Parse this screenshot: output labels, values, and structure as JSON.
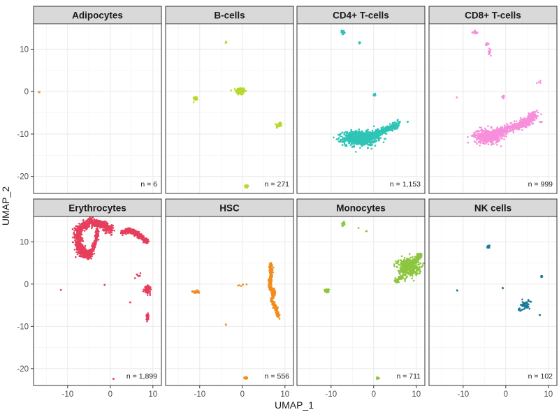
{
  "chart_data": {
    "type": "scatter",
    "layout": "facet-grid",
    "xlabel": "UMAP_1",
    "ylabel": "UMAP_2",
    "xlim": [
      -18,
      12
    ],
    "ylim": [
      -24,
      16
    ],
    "x_ticks": [
      -10,
      0,
      10
    ],
    "y_ticks": [
      -20,
      -10,
      0,
      10
    ],
    "grid": true,
    "panels": [
      {
        "name": "Adipocytes",
        "color": "#F8A23A",
        "count_label": "n = 6",
        "clusters": [
          {
            "shape": "blob",
            "cx": -16.8,
            "cy": -0.1,
            "rx": 0.15,
            "ry": 0.12,
            "n": 6
          }
        ]
      },
      {
        "name": "B-cells",
        "color": "#B5DA2C",
        "count_label": "n = 271",
        "clusters": [
          {
            "shape": "blob",
            "cx": -0.4,
            "cy": 0.1,
            "rx": 1.0,
            "ry": 0.8,
            "n": 150
          },
          {
            "shape": "blob",
            "cx": -11.0,
            "cy": -1.6,
            "rx": 0.5,
            "ry": 0.4,
            "n": 30
          },
          {
            "shape": "blob",
            "cx": 8.6,
            "cy": -7.9,
            "rx": 0.6,
            "ry": 0.5,
            "n": 50
          },
          {
            "shape": "blob",
            "cx": 1.0,
            "cy": -22.3,
            "rx": 0.3,
            "ry": 0.3,
            "n": 20
          },
          {
            "shape": "blob",
            "cx": -3.9,
            "cy": 11.6,
            "rx": 0.15,
            "ry": 0.15,
            "n": 5
          }
        ]
      },
      {
        "name": "CD4+ T-cells",
        "color": "#2EC4B6",
        "count_label": "n = 1,153",
        "clusters": [
          {
            "shape": "blob",
            "cx": -3.2,
            "cy": -11.0,
            "rx": 3.6,
            "ry": 1.5,
            "n": 750
          },
          {
            "shape": "strip",
            "points": [
              [
                -1,
                -10.5
              ],
              [
                1.5,
                -9.5
              ],
              [
                4,
                -8.5
              ],
              [
                5.5,
                -7.8
              ]
            ],
            "spread": 0.9,
            "n": 300
          },
          {
            "shape": "blob",
            "cx": -7.2,
            "cy": 14.0,
            "rx": 0.5,
            "ry": 0.4,
            "n": 25
          },
          {
            "shape": "blob",
            "cx": -3.4,
            "cy": 11.5,
            "rx": 0.25,
            "ry": 0.25,
            "n": 10
          },
          {
            "shape": "blob",
            "cx": 0.2,
            "cy": -0.8,
            "rx": 0.25,
            "ry": 0.35,
            "n": 12
          },
          {
            "shape": "blob",
            "cx": 8.0,
            "cy": -7.1,
            "rx": 0.1,
            "ry": 0.1,
            "n": 2
          },
          {
            "shape": "blob",
            "cx": 6.0,
            "cy": -7.2,
            "rx": 0.5,
            "ry": 0.7,
            "n": 8
          }
        ]
      },
      {
        "name": "CD8+ T-cells",
        "color": "#F78FDB",
        "count_label": "n = 999",
        "clusters": [
          {
            "shape": "blob",
            "cx": -4.3,
            "cy": -10.5,
            "rx": 2.8,
            "ry": 1.5,
            "n": 420
          },
          {
            "shape": "strip",
            "points": [
              [
                -2.5,
                -10
              ],
              [
                0,
                -9
              ],
              [
                3,
                -8
              ],
              [
                5.5,
                -6.8
              ],
              [
                7.0,
                -5.0
              ]
            ],
            "spread": 1.3,
            "n": 450
          },
          {
            "shape": "blob",
            "cx": -7.2,
            "cy": 14.0,
            "rx": 0.8,
            "ry": 0.3,
            "n": 15
          },
          {
            "shape": "blob",
            "cx": -4.3,
            "cy": 11.3,
            "rx": 0.3,
            "ry": 0.3,
            "n": 12
          },
          {
            "shape": "blob",
            "cx": -3.9,
            "cy": 9.5,
            "rx": 0.3,
            "ry": 0.6,
            "n": 12
          },
          {
            "shape": "blob",
            "cx": -0.6,
            "cy": -1.2,
            "rx": 0.25,
            "ry": 0.25,
            "n": 8
          },
          {
            "shape": "blob",
            "cx": 8.0,
            "cy": 2.2,
            "rx": 0.6,
            "ry": 0.3,
            "n": 4
          },
          {
            "shape": "blob",
            "cx": 8.3,
            "cy": -7.2,
            "rx": 0.4,
            "ry": 0.3,
            "n": 6
          },
          {
            "shape": "blob",
            "cx": -11.5,
            "cy": -1.5,
            "rx": 0.1,
            "ry": 0.1,
            "n": 2
          }
        ]
      },
      {
        "name": "Erythrocytes",
        "color": "#E63E5C",
        "count_label": "n = 1,899",
        "clusters": [
          {
            "shape": "strip",
            "points": [
              [
                0.2,
                12.8
              ],
              [
                -2.0,
                14.3
              ],
              [
                -5.0,
                14.6
              ],
              [
                -7.3,
                13.0
              ],
              [
                -7.6,
                10.0
              ],
              [
                -6.5,
                7.3
              ],
              [
                -4.8,
                6.8
              ]
            ],
            "spread": 1.2,
            "n": 900
          },
          {
            "shape": "strip",
            "points": [
              [
                -3.0,
                13.0
              ],
              [
                -3.3,
                10.5
              ],
              [
                -4.0,
                8.5
              ],
              [
                -4.5,
                7.5
              ]
            ],
            "spread": 0.5,
            "n": 150
          },
          {
            "shape": "strip",
            "points": [
              [
                2.7,
                12.2
              ],
              [
                4.5,
                12.8
              ],
              [
                6.5,
                11.8
              ],
              [
                8.5,
                10.1
              ]
            ],
            "spread": 0.6,
            "n": 500
          },
          {
            "shape": "blob",
            "cx": 8.7,
            "cy": -1.4,
            "rx": 0.6,
            "ry": 0.8,
            "n": 100
          },
          {
            "shape": "blob",
            "cx": 8.7,
            "cy": -7.8,
            "rx": 0.25,
            "ry": 0.7,
            "n": 40
          },
          {
            "shape": "blob",
            "cx": 6.5,
            "cy": 2.0,
            "rx": 1.2,
            "ry": 0.6,
            "n": 8
          },
          {
            "shape": "blob",
            "cx": -11.6,
            "cy": -1.4,
            "rx": 0.1,
            "ry": 0.1,
            "n": 2
          },
          {
            "shape": "blob",
            "cx": -1.3,
            "cy": -0.2,
            "rx": 0.1,
            "ry": 0.1,
            "n": 2
          },
          {
            "shape": "blob",
            "cx": 4.6,
            "cy": -4.3,
            "rx": 0.1,
            "ry": 0.1,
            "n": 2
          },
          {
            "shape": "blob",
            "cx": 0.8,
            "cy": -22.4,
            "rx": 0.1,
            "ry": 0.1,
            "n": 2
          }
        ]
      },
      {
        "name": "HSC",
        "color": "#F28C1E",
        "count_label": "n = 556",
        "clusters": [
          {
            "shape": "strip",
            "points": [
              [
                6.6,
                5.0
              ],
              [
                6.7,
                2.0
              ],
              [
                6.4,
                -0.5
              ],
              [
                7.5,
                -2.0
              ],
              [
                6.8,
                -3.7
              ],
              [
                7.8,
                -5.5
              ],
              [
                8.5,
                -7.8
              ]
            ],
            "spread": 0.5,
            "n": 400
          },
          {
            "shape": "blob",
            "cx": -10.8,
            "cy": -1.8,
            "rx": 0.7,
            "ry": 0.3,
            "n": 40
          },
          {
            "shape": "blob",
            "cx": 0.8,
            "cy": -22.3,
            "rx": 0.3,
            "ry": 0.3,
            "n": 20
          },
          {
            "shape": "blob",
            "cx": -0.2,
            "cy": -0.3,
            "rx": 0.8,
            "ry": 0.25,
            "n": 6
          },
          {
            "shape": "blob",
            "cx": -3.9,
            "cy": -9.6,
            "rx": 0.1,
            "ry": 0.1,
            "n": 2
          }
        ]
      },
      {
        "name": "Monocytes",
        "color": "#8DC63F",
        "count_label": "n = 711",
        "clusters": [
          {
            "shape": "blob",
            "cx": 8.2,
            "cy": 4.2,
            "rx": 2.2,
            "ry": 1.8,
            "n": 450
          },
          {
            "shape": "strip",
            "points": [
              [
                6.8,
                2.0
              ],
              [
                5.0,
                0.5
              ]
            ],
            "spread": 0.6,
            "n": 60
          },
          {
            "shape": "strip",
            "points": [
              [
                9.7,
                5.2
              ],
              [
                11.0,
                7.2
              ]
            ],
            "spread": 0.7,
            "n": 80
          },
          {
            "shape": "blob",
            "cx": -11.0,
            "cy": -1.6,
            "rx": 0.5,
            "ry": 0.4,
            "n": 30
          },
          {
            "shape": "blob",
            "cx": -7.2,
            "cy": 14.3,
            "rx": 0.4,
            "ry": 0.5,
            "n": 20
          },
          {
            "shape": "blob",
            "cx": -3.6,
            "cy": 13.3,
            "rx": 0.1,
            "ry": 0.1,
            "n": 2
          },
          {
            "shape": "blob",
            "cx": -1.7,
            "cy": 12.5,
            "rx": 0.1,
            "ry": 0.1,
            "n": 2
          },
          {
            "shape": "blob",
            "cx": 1.0,
            "cy": -22.3,
            "rx": 0.3,
            "ry": 0.3,
            "n": 12
          }
        ]
      },
      {
        "name": "NK cells",
        "color": "#1A7A99",
        "count_label": "n = 102",
        "clusters": [
          {
            "shape": "blob",
            "cx": 4.6,
            "cy": -4.9,
            "rx": 0.9,
            "ry": 0.9,
            "n": 50
          },
          {
            "shape": "blob",
            "cx": -4.1,
            "cy": 8.8,
            "rx": 0.3,
            "ry": 0.35,
            "n": 14
          },
          {
            "shape": "blob",
            "cx": 8.4,
            "cy": 1.9,
            "rx": 0.2,
            "ry": 0.35,
            "n": 10
          },
          {
            "shape": "blob",
            "cx": 3.6,
            "cy": -6.0,
            "rx": 0.5,
            "ry": 0.4,
            "n": 8
          },
          {
            "shape": "blob",
            "cx": -0.7,
            "cy": -0.9,
            "rx": 0.1,
            "ry": 0.1,
            "n": 2
          },
          {
            "shape": "blob",
            "cx": -11.4,
            "cy": -1.5,
            "rx": 0.1,
            "ry": 0.1,
            "n": 2
          },
          {
            "shape": "blob",
            "cx": 8.0,
            "cy": -7.3,
            "rx": 0.1,
            "ry": 0.1,
            "n": 2
          },
          {
            "shape": "blob",
            "cx": 5.9,
            "cy": -4.2,
            "rx": 0.1,
            "ry": 0.1,
            "n": 2
          }
        ]
      }
    ]
  }
}
